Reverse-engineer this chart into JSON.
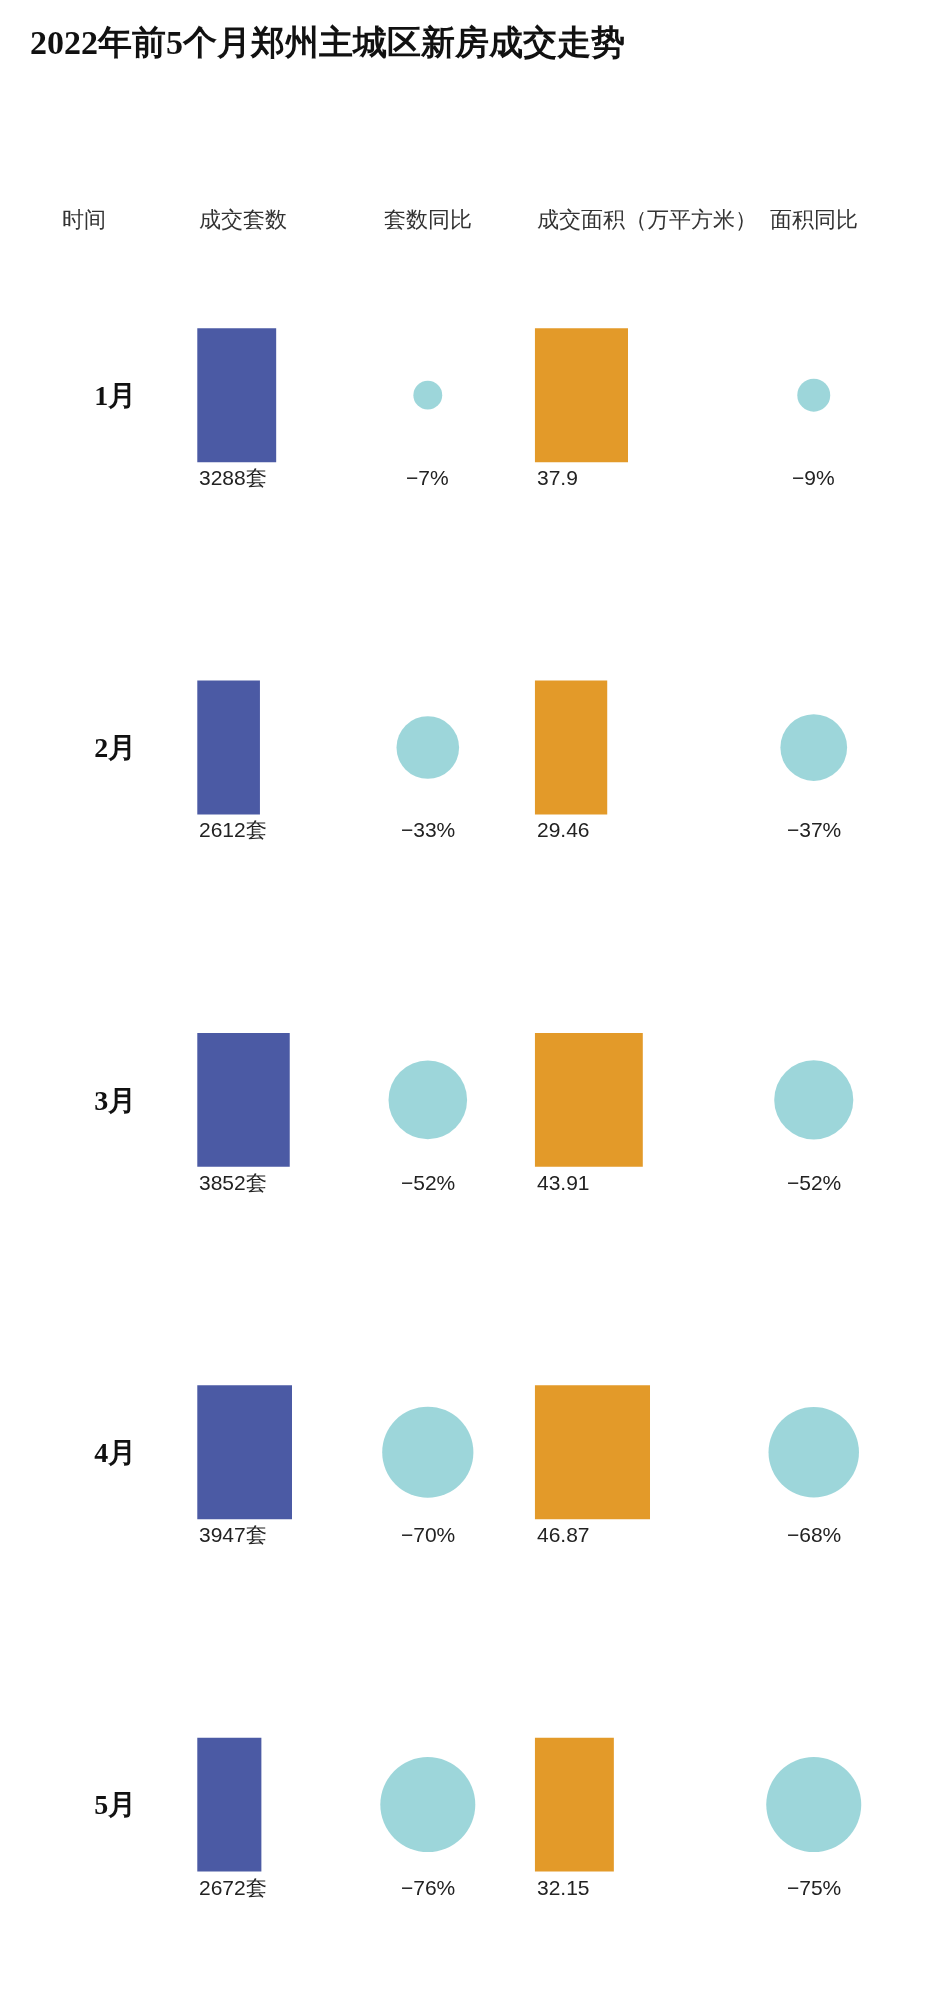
{
  "chart_data": [
    {
      "type": "bar",
      "orientation": "horizontal",
      "title": "2022年前5个月郑州主城区新房成交走势",
      "subtitle": "成交套数",
      "ylabel": "时间",
      "categories": [
        "1月",
        "2月",
        "3月",
        "4月",
        "5月"
      ],
      "values": [
        3288,
        2612,
        3852,
        3947,
        2672
      ],
      "value_labels": [
        "3288套",
        "2612套",
        "3852套",
        "3947套",
        "2672套"
      ],
      "color": "#4b5aa4",
      "tick_labels": "y"
    },
    {
      "type": "other",
      "subtitle": "套数同比",
      "values": [
        -7,
        -33,
        -52,
        -70,
        -76
      ],
      "value_labels": [
        "−7%",
        "−33%",
        "−52%",
        "−70%",
        "−76%"
      ],
      "color": "#73c5cb"
    },
    {
      "type": "bar",
      "orientation": "horizontal",
      "subtitle": "成交面积（万平方米）",
      "categories": [
        "1月",
        "2月",
        "3月",
        "4月",
        "5月"
      ],
      "values": [
        37.9,
        29.46,
        43.91,
        46.87,
        32.15
      ],
      "data_labels": true,
      "color": "#e39a29",
      "tick_labels": false
    },
    {
      "type": "other",
      "subtitle": "面积同比",
      "values": [
        -9,
        -37,
        -52,
        -68,
        -75
      ],
      "value_labels": [
        "−9%",
        "−37%",
        "−52%",
        "−68%",
        "−75%"
      ],
      "color": "#73c5cb"
    }
  ]
}
